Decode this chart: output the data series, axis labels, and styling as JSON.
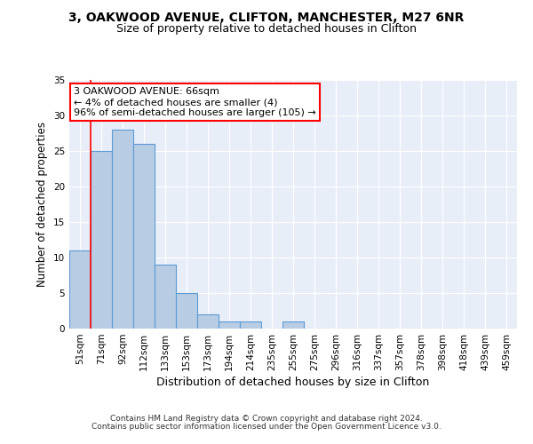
{
  "title1": "3, OAKWOOD AVENUE, CLIFTON, MANCHESTER, M27 6NR",
  "title2": "Size of property relative to detached houses in Clifton",
  "xlabel": "Distribution of detached houses by size in Clifton",
  "ylabel": "Number of detached properties",
  "footer1": "Contains HM Land Registry data © Crown copyright and database right 2024.",
  "footer2": "Contains public sector information licensed under the Open Government Licence v3.0.",
  "bin_labels": [
    "51sqm",
    "71sqm",
    "92sqm",
    "112sqm",
    "133sqm",
    "153sqm",
    "173sqm",
    "194sqm",
    "214sqm",
    "235sqm",
    "255sqm",
    "275sqm",
    "296sqm",
    "316sqm",
    "337sqm",
    "357sqm",
    "378sqm",
    "398sqm",
    "418sqm",
    "439sqm",
    "459sqm"
  ],
  "bar_values": [
    11,
    25,
    28,
    26,
    9,
    5,
    2,
    1,
    1,
    0,
    1,
    0,
    0,
    0,
    0,
    0,
    0,
    0,
    0,
    0,
    0
  ],
  "bar_color": "#b8cce4",
  "bar_edge_color": "#5b9bd5",
  "annotation_line1": "3 OAKWOOD AVENUE: 66sqm",
  "annotation_line2": "← 4% of detached houses are smaller (4)",
  "annotation_line3": "96% of semi-detached houses are larger (105) →",
  "annotation_box_color": "white",
  "annotation_box_edge_color": "red",
  "vline_color": "red",
  "ylim": [
    0,
    35
  ],
  "yticks": [
    0,
    5,
    10,
    15,
    20,
    25,
    30,
    35
  ],
  "background_color": "#e8eef8",
  "grid_color": "white",
  "title1_fontsize": 10,
  "title2_fontsize": 9,
  "xlabel_fontsize": 9,
  "ylabel_fontsize": 8.5,
  "tick_fontsize": 7.5,
  "annotation_fontsize": 8,
  "footer_fontsize": 6.5
}
